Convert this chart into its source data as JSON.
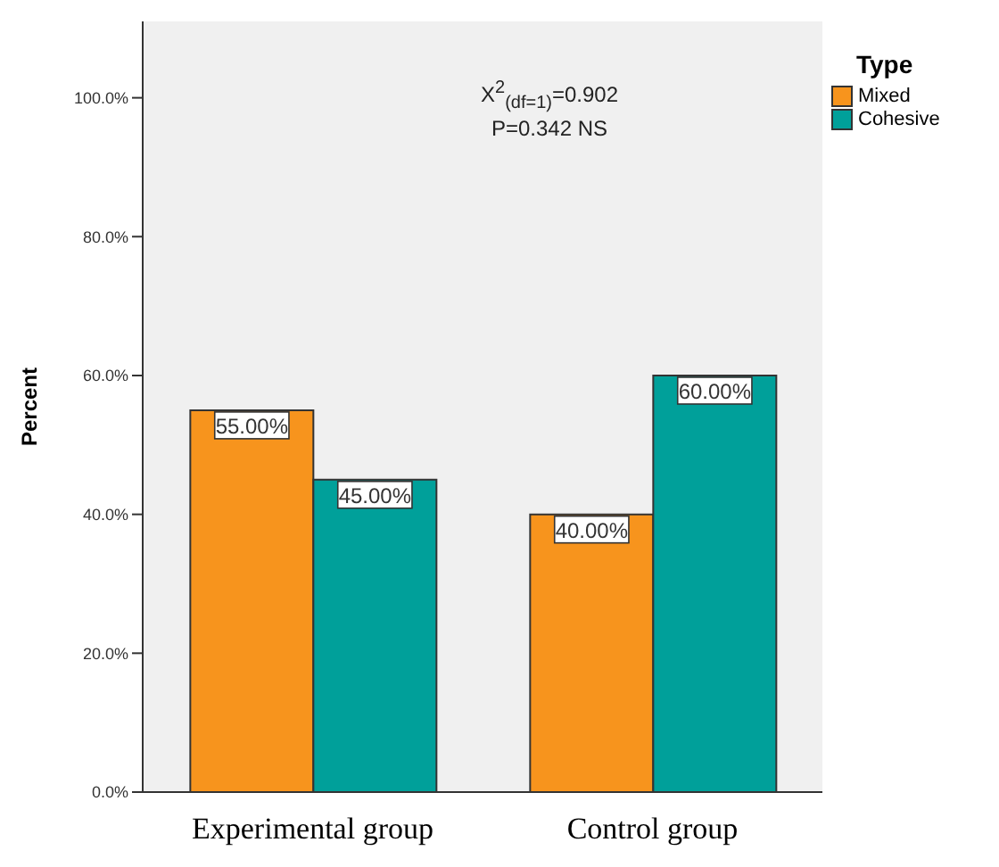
{
  "chart_data": {
    "type": "bar",
    "ylabel": "Percent",
    "legend_title": "Type",
    "legend": "top right",
    "grid": false,
    "categories": [
      "Experimental group",
      "Control group"
    ],
    "series": [
      {
        "name": "Mixed",
        "color": "#f7941d",
        "values": [
          55,
          40
        ],
        "value_labels": [
          "55.00%",
          "40.00%"
        ]
      },
      {
        "name": "Cohesive",
        "color": "#00a09a",
        "values": [
          45,
          60
        ],
        "value_labels": [
          "45.00%",
          "60.00%"
        ]
      }
    ],
    "ylim": [
      0,
      111
    ],
    "yticks": [
      {
        "value": 0,
        "label": "0.0%"
      },
      {
        "value": 20,
        "label": "20.0%"
      },
      {
        "value": 40,
        "label": "40.0%"
      },
      {
        "value": 60,
        "label": "60.0%"
      },
      {
        "value": 80,
        "label": "80.0%"
      },
      {
        "value": 100,
        "label": "100.0%"
      }
    ],
    "annotations": [
      "X$^{2}$$_{(df=1)}$=0.902",
      "P=0.342 NS"
    ]
  }
}
